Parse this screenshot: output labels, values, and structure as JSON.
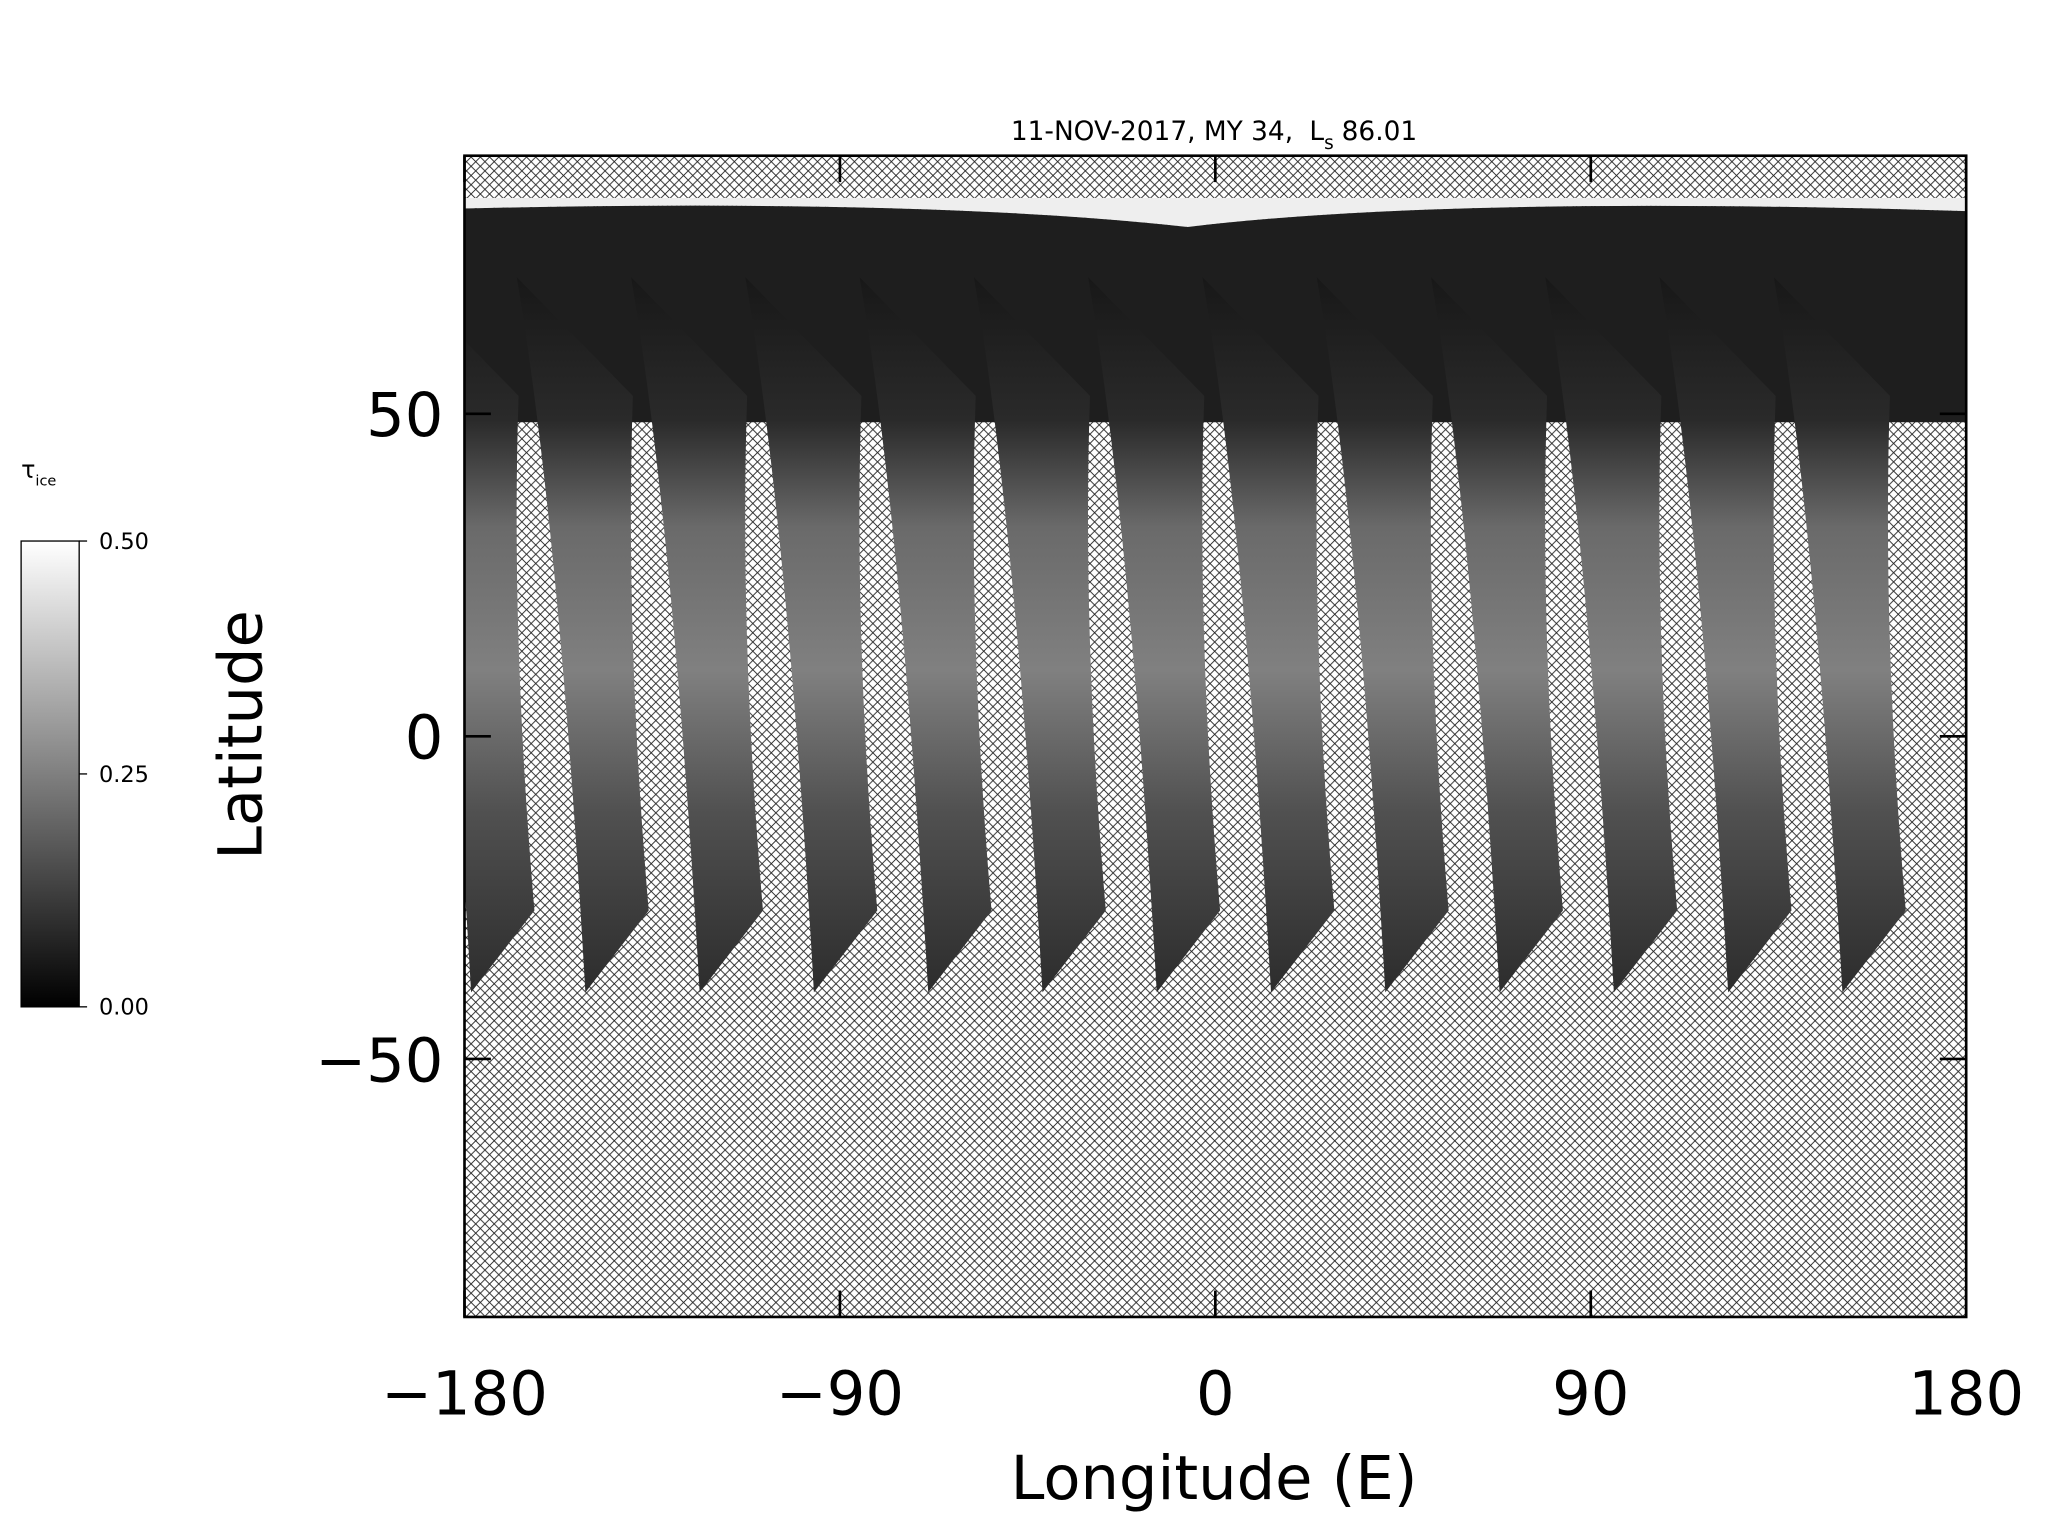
{
  "chart_data": {
    "type": "map",
    "title": "11-NOV-2017, MY 34,",
    "title_symbol": "L",
    "title_symbol_subscript": "s",
    "title_value": "86.01",
    "x_label": "Longitude (E)",
    "y_label": "Latitude",
    "xlim": [
      -180,
      180
    ],
    "ylim": [
      -90,
      90
    ],
    "xticks": [
      {
        "value": -180,
        "label": "−180"
      },
      {
        "value": -90,
        "label": "−90"
      },
      0,
      90,
      180
    ],
    "yticks": [
      {
        "value": -50,
        "label": "−50"
      },
      0,
      50
    ],
    "grid": false,
    "colorbar": {
      "label": "τ",
      "label_subscript": "ice",
      "lim": [
        0,
        0.5
      ],
      "ticks": [
        {
          "value": 0,
          "label": "0.00"
        },
        {
          "value": 0.25,
          "label": "0.25"
        },
        {
          "value": 0.5,
          "label": "0.50"
        }
      ],
      "colors": [
        "#000000",
        "#ffffff"
      ]
    }
  }
}
